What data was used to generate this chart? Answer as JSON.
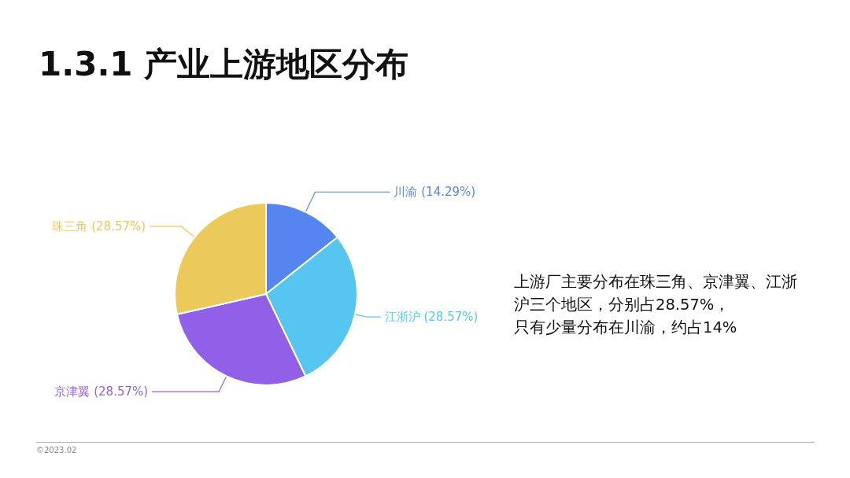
{
  "chart_data": {
    "type": "pie",
    "title": "1.3.1 产业上游地区分布",
    "categories": [
      "川渝",
      "江浙沪",
      "京津翼",
      "珠三角"
    ],
    "values": [
      14.29,
      28.57,
      28.57,
      28.57
    ],
    "value_labels": [
      "(14.29%)",
      "(28.57%)",
      "(28.57%)",
      "(28.57%)"
    ],
    "colors": [
      "#5585f0",
      "#56c6f1",
      "#9260e8",
      "#ebc95a"
    ],
    "legend": false,
    "annotations": [
      "上游厂主要分布在珠三角、京津翼、江浙沪三个地区，分别占28.57%，",
      "只有少量分布在川渝，约占14%",
      "©2023.02"
    ]
  }
}
